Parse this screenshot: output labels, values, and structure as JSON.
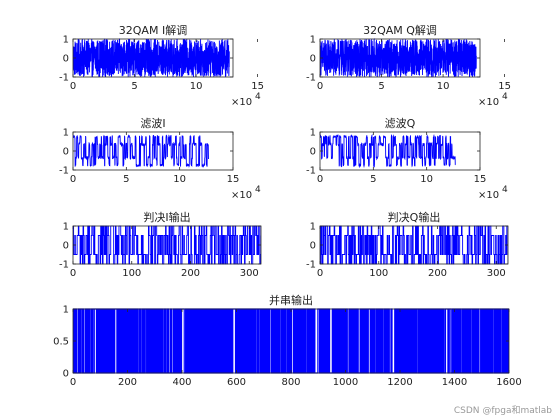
{
  "figure": {
    "watermark": "CSDN @fpga和matlab"
  },
  "chart_data": [
    {
      "type": "line",
      "title": "32QAM I解调",
      "xlim": [
        0,
        130000
      ],
      "ylim": [
        -1,
        1
      ],
      "xticks": [
        0,
        5,
        10,
        15
      ],
      "yticks": [
        -1,
        0,
        1
      ],
      "x_exponent": "4",
      "series_color": "#0000ff",
      "signal": "dense random values in [-1, 1] over x = 0..127000"
    },
    {
      "type": "line",
      "title": "32QAM Q解调",
      "xlim": [
        0,
        130000
      ],
      "ylim": [
        -1,
        1
      ],
      "xticks": [
        0,
        5,
        10,
        15
      ],
      "yticks": [
        -1,
        0,
        1
      ],
      "x_exponent": "4",
      "series_color": "#0000ff",
      "signal": "dense random values in [-1, 1] over x = 0..127000"
    },
    {
      "type": "line",
      "title": "滤波I",
      "xlim": [
        0,
        150000
      ],
      "ylim": [
        -1,
        1
      ],
      "xticks": [
        0,
        5,
        10,
        15
      ],
      "yticks": [
        -1,
        0,
        1
      ],
      "x_exponent": "4",
      "series_color": "#0000ff",
      "signal": "filtered multi-level values between -0.8 and 0.8 over x = 0..127000"
    },
    {
      "type": "line",
      "title": "滤波Q",
      "xlim": [
        0,
        150000
      ],
      "ylim": [
        -1,
        1
      ],
      "xticks": [
        0,
        5,
        10,
        15
      ],
      "yticks": [
        -1,
        0,
        1
      ],
      "x_exponent": "4",
      "series_color": "#0000ff",
      "signal": "filtered multi-level values between -0.8 and 0.8 over x = 0..127000"
    },
    {
      "type": "line",
      "title": "判决I输出",
      "xlim": [
        0,
        320
      ],
      "ylim": [
        -1,
        1
      ],
      "xticks": [
        0,
        100,
        200,
        300
      ],
      "yticks": [
        -1,
        0,
        1
      ],
      "series_color": "#0000ff",
      "signal": "stepped symbol decisions at levels -1, -0.5, 0.5, 1 over x = 0..320"
    },
    {
      "type": "line",
      "title": "判决Q输出",
      "xlim": [
        0,
        320
      ],
      "ylim": [
        -1,
        1
      ],
      "xticks": [
        0,
        100,
        200,
        300
      ],
      "yticks": [
        -1,
        0,
        1
      ],
      "series_color": "#0000ff",
      "signal": "stepped symbol decisions at levels -1, -0.5, 0.5, 1 over x = 0..320"
    },
    {
      "type": "line",
      "title": "并串输出",
      "xlim": [
        0,
        1600
      ],
      "ylim": [
        0,
        1
      ],
      "xticks": [
        0,
        200,
        400,
        600,
        800,
        1000,
        1200,
        1400,
        1600
      ],
      "yticks": [
        0,
        0.5,
        1
      ],
      "series_color": "#0000ff",
      "signal": "binary bit stream 0/1 over x = 0..1600"
    }
  ]
}
